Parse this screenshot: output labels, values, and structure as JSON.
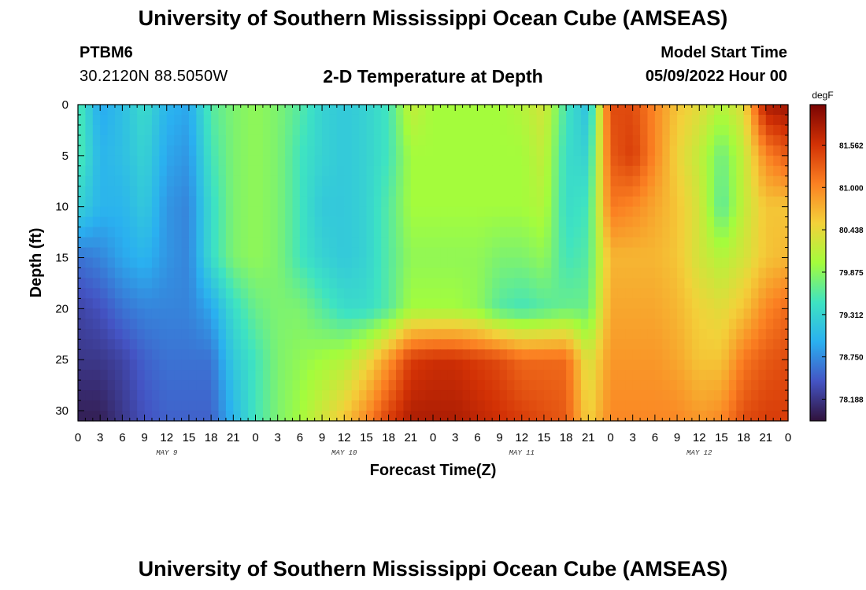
{
  "header": {
    "title": "University of Southern Mississippi Ocean Cube (AMSEAS)",
    "station": "PTBM6",
    "coordinates": "30.2120N  88.5050W",
    "subtitle": "2-D Temperature at Depth",
    "model_start_label": "Model Start Time",
    "model_start_value": "05/09/2022 Hour 00"
  },
  "footer": {
    "title": "University of Southern Mississippi Ocean Cube (AMSEAS)"
  },
  "chart_data": {
    "type": "heatmap",
    "title": "2-D Temperature at Depth",
    "xlabel": "Forecast Time(Z)",
    "ylabel": "Depth (ft)",
    "x_hours_range": [
      0,
      96
    ],
    "x_tick_step_hours": 3,
    "x_tick_labels": [
      "0",
      "3",
      "6",
      "9",
      "12",
      "15",
      "18",
      "21",
      "0",
      "3",
      "6",
      "9",
      "12",
      "15",
      "18",
      "21",
      "0",
      "3",
      "6",
      "9",
      "12",
      "15",
      "18",
      "21",
      "0",
      "3",
      "6",
      "9",
      "12",
      "15",
      "18",
      "21",
      "0"
    ],
    "day_labels": [
      {
        "label": "MAY 9",
        "hour": 12
      },
      {
        "label": "MAY 10",
        "hour": 36
      },
      {
        "label": "MAY 11",
        "hour": 60
      },
      {
        "label": "MAY 12",
        "hour": 84
      }
    ],
    "y_range": [
      0,
      31
    ],
    "y_ticks": [
      0,
      5,
      10,
      15,
      20,
      25,
      30
    ],
    "colorbar": {
      "unit": "degF",
      "range": [
        77.9,
        82.1
      ],
      "ticks": [
        "81.562",
        "81.000",
        "80.438",
        "79.875",
        "79.312",
        "78.750",
        "78.188"
      ],
      "stops": [
        "#30123b",
        "#4454c4",
        "#2ab0f0",
        "#3ee3c2",
        "#a4fc3c",
        "#f3d13a",
        "#fb8022",
        "#d23105",
        "#7a0403"
      ]
    },
    "time_columns_hours": [
      0,
      3,
      6,
      9,
      12,
      15,
      18,
      21,
      24,
      27,
      30,
      33,
      36,
      39,
      42,
      45,
      48,
      51,
      54,
      57,
      60,
      63,
      66,
      69,
      72,
      75,
      78,
      81,
      84,
      87,
      90,
      93,
      96
    ],
    "depth_rows_ft": [
      0,
      5,
      10,
      15,
      20,
      25,
      31
    ],
    "values_degF": [
      [
        79.6,
        78.9,
        79.1,
        79.4,
        79.0,
        78.9,
        79.6,
        79.8,
        79.9,
        79.8,
        79.6,
        79.3,
        79.2,
        79.3,
        79.5,
        80.2,
        80.0,
        80.0,
        80.0,
        80.0,
        80.1,
        80.3,
        79.5,
        79.1,
        81.4,
        81.4,
        81.0,
        80.6,
        80.4,
        80.1,
        80.4,
        81.8,
        81.9
      ],
      [
        79.6,
        79.0,
        79.1,
        79.3,
        78.9,
        78.8,
        79.5,
        79.8,
        79.9,
        79.8,
        79.5,
        79.3,
        79.2,
        79.3,
        79.5,
        80.0,
        80.0,
        80.0,
        80.0,
        80.0,
        80.0,
        80.2,
        79.4,
        79.3,
        81.3,
        81.5,
        81.0,
        80.5,
        80.2,
        79.7,
        80.2,
        81.0,
        81.3
      ],
      [
        79.3,
        79.0,
        79.0,
        79.2,
        78.8,
        78.7,
        79.4,
        79.8,
        79.9,
        79.8,
        79.5,
        79.2,
        79.2,
        79.3,
        79.6,
        80.0,
        80.0,
        80.0,
        80.0,
        80.0,
        80.0,
        80.1,
        79.4,
        79.5,
        81.1,
        81.0,
        80.8,
        80.6,
        80.3,
        79.6,
        80.2,
        80.6,
        80.6
      ],
      [
        78.6,
        78.7,
        78.9,
        79.0,
        78.8,
        78.7,
        79.4,
        79.8,
        79.9,
        79.8,
        79.5,
        79.3,
        79.2,
        79.3,
        79.6,
        79.9,
        79.9,
        79.9,
        79.9,
        79.8,
        79.8,
        79.9,
        79.5,
        79.6,
        80.7,
        80.7,
        80.7,
        80.6,
        80.3,
        80.1,
        80.3,
        80.6,
        80.7
      ],
      [
        78.3,
        78.4,
        78.6,
        78.7,
        78.7,
        78.7,
        78.9,
        79.4,
        79.7,
        79.8,
        79.8,
        79.6,
        79.4,
        79.4,
        79.6,
        80.0,
        80.0,
        80.0,
        79.9,
        79.6,
        79.5,
        79.6,
        79.7,
        79.7,
        80.8,
        80.8,
        80.8,
        80.7,
        80.5,
        80.4,
        80.6,
        81.0,
        81.2
      ],
      [
        78.2,
        78.2,
        78.3,
        78.5,
        78.6,
        78.6,
        78.6,
        79.2,
        79.5,
        79.8,
        79.9,
        80.0,
        80.1,
        80.4,
        80.9,
        81.5,
        81.6,
        81.6,
        81.5,
        81.4,
        81.2,
        81.2,
        81.2,
        80.3,
        80.9,
        80.9,
        80.9,
        80.8,
        80.6,
        80.6,
        81.1,
        81.3,
        81.4
      ],
      [
        78.0,
        78.0,
        78.2,
        78.4,
        78.5,
        78.5,
        78.5,
        79.0,
        79.5,
        79.8,
        80.0,
        80.3,
        80.6,
        81.0,
        81.5,
        81.8,
        81.8,
        81.8,
        81.7,
        81.6,
        81.5,
        81.4,
        81.3,
        80.5,
        81.0,
        81.0,
        81.0,
        81.0,
        80.9,
        81.0,
        81.4,
        81.5,
        81.5
      ]
    ]
  }
}
